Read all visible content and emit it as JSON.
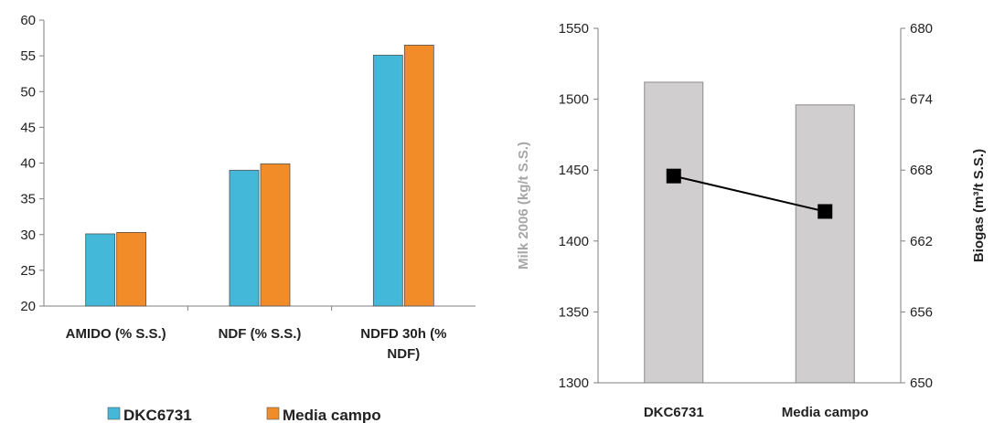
{
  "chart_data": [
    {
      "type": "bar",
      "categories": [
        [
          "AMIDO (% S.S.)"
        ],
        [
          "NDF (% S.S.)"
        ],
        [
          "NDFD 30h (%",
          "NDF)"
        ]
      ],
      "series": [
        {
          "name": "DKC6731",
          "values": [
            30.1,
            39.0,
            55.1
          ]
        },
        {
          "name": "Media campo",
          "values": [
            30.3,
            39.9,
            56.5
          ]
        }
      ],
      "ylim": [
        20,
        60
      ],
      "yticks": [
        20,
        25,
        30,
        35,
        40,
        45,
        50,
        55,
        60
      ],
      "grid": false,
      "legend": "bottom",
      "colors": [
        "#44b8d8",
        "#f28c28"
      ]
    },
    {
      "type": "bar+line",
      "categories": [
        "DKC6731",
        "Media campo"
      ],
      "bar_series": {
        "values": [
          1512,
          1496
        ],
        "color": "#d0cece"
      },
      "line_series": {
        "values": [
          667.5,
          664.5
        ],
        "color": "#000000"
      },
      "ylabel": "Milk 2006 (kg/t S.S.)",
      "y2label": "Biogas (m³/t S.S.)",
      "ylim": [
        1300,
        1550
      ],
      "yticks": [
        1300,
        1350,
        1400,
        1450,
        1500,
        1550
      ],
      "y2lim": [
        650,
        680
      ],
      "y2ticks": [
        650,
        656,
        662,
        668,
        674,
        680
      ],
      "grid": false
    }
  ]
}
